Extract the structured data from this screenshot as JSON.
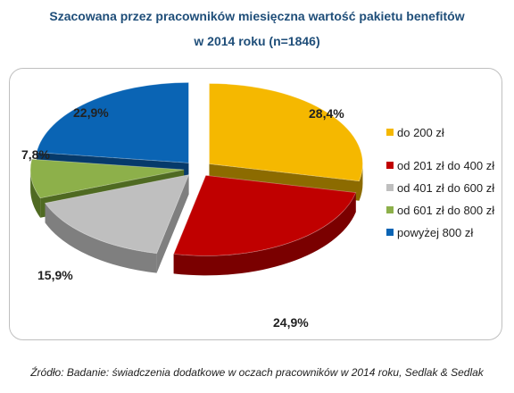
{
  "title_line1": "Szacowana przez pracowników miesięczna wartość pakietu benefitów",
  "title_line2": "w 2014 roku (n=1846)",
  "source": "Źródło: Badanie: świadczenia dodatkowe w oczach pracowników w 2014 roku, Sedlak & Sedlak",
  "chart_data": {
    "type": "pie",
    "title": "Szacowana przez pracowników miesięczna wartość pakietu benefitów w 2014 roku (n=1846)",
    "style": "3d-exploded",
    "legend_position": "right",
    "categories": [
      "do 200 zł",
      "od 201 zł do 400 zł",
      "od 401 zł do 600 zł",
      "od 601 zł do 800 zł",
      "powyżej 800 zł"
    ],
    "values": [
      28.4,
      24.9,
      15.9,
      7.8,
      22.9
    ],
    "labels": [
      "28,4%",
      "24,9%",
      "15,9%",
      "7,8%",
      "22,9%"
    ],
    "colors": [
      "#f5b800",
      "#c00000",
      "#bfbfbf",
      "#8db04a",
      "#0a64b4"
    ],
    "side_colors": [
      "#8c6b00",
      "#7a0000",
      "#7f7f7f",
      "#4f6a22",
      "#063a6b"
    ]
  }
}
